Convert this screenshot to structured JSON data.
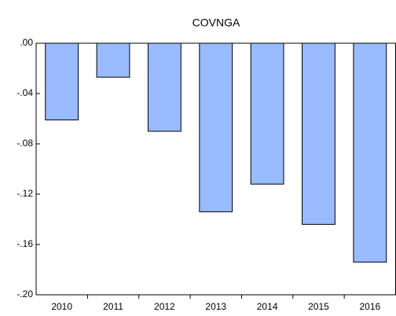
{
  "chart_data": {
    "type": "bar",
    "title": "COVNGA",
    "categories": [
      "2010",
      "2011",
      "2012",
      "2013",
      "2014",
      "2015",
      "2016"
    ],
    "values": [
      -0.061,
      -0.027,
      -0.07,
      -0.134,
      -0.112,
      -0.144,
      -0.174
    ],
    "color": "#99bbff",
    "ylim": [
      -0.2,
      0
    ],
    "yticks": [
      {
        "value": 0,
        "label": ".00"
      },
      {
        "value": -0.04,
        "label": "-.04"
      },
      {
        "value": -0.08,
        "label": "-.08"
      },
      {
        "value": -0.12,
        "label": "-.12"
      },
      {
        "value": -0.16,
        "label": "-.16"
      },
      {
        "value": -0.2,
        "label": "-.20"
      }
    ],
    "grid": false
  }
}
